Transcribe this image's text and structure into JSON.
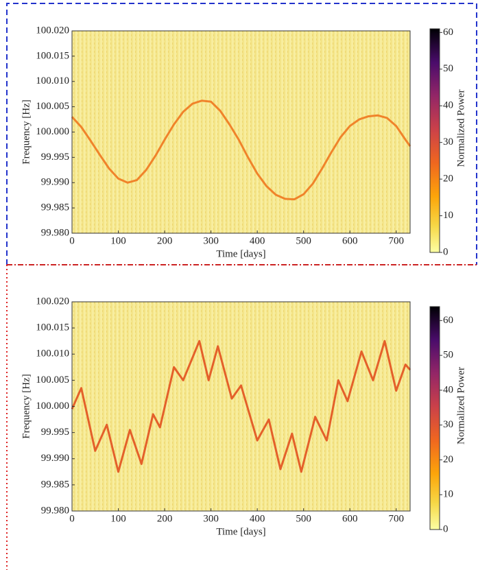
{
  "chart_data": [
    {
      "type": "spectrogram",
      "xlabel": "Time [days]",
      "ylabel": "Frequency [Hz]",
      "xlim": [
        0,
        730
      ],
      "xticks": [
        0,
        100,
        200,
        300,
        400,
        500,
        600,
        700
      ],
      "ylim": [
        99.98,
        100.02
      ],
      "yticks": [
        {
          "value": 99.98,
          "label": "99.980"
        },
        99.985,
        {
          "value": 99.99,
          "label": "99.990"
        },
        99.995,
        {
          "value": 100.0,
          "label": "100.000"
        },
        100.005,
        {
          "value": 100.01,
          "label": "100.010"
        },
        100.015,
        {
          "value": 100.02,
          "label": "100.020"
        }
      ],
      "color": "#f0832a",
      "x": [
        0,
        20,
        40,
        60,
        80,
        100,
        120,
        140,
        160,
        180,
        200,
        220,
        240,
        260,
        280,
        300,
        320,
        340,
        360,
        380,
        400,
        420,
        440,
        460,
        480,
        500,
        520,
        540,
        560,
        580,
        600,
        620,
        640,
        660,
        680,
        700,
        720,
        730
      ],
      "values": [
        100.003,
        100.001,
        99.9983,
        99.9955,
        99.9928,
        99.9908,
        99.99,
        99.9905,
        99.9925,
        99.9953,
        99.9985,
        100.0015,
        100.004,
        100.0056,
        100.0062,
        100.006,
        100.0042,
        100.0015,
        99.9985,
        99.995,
        99.9918,
        99.9893,
        99.9876,
        99.9868,
        99.9867,
        99.9877,
        99.9898,
        99.9928,
        99.996,
        99.999,
        100.0012,
        100.0025,
        100.0031,
        100.0033,
        100.0028,
        100.0012,
        99.9985,
        99.9972
      ],
      "colorbar": {
        "label": "Normalized Power",
        "lim": [
          0,
          61
        ],
        "ticks": [
          0,
          10,
          20,
          30,
          40,
          50,
          60
        ]
      }
    },
    {
      "type": "spectrogram",
      "xlabel": "Time [days]",
      "ylabel": "Frequency [Hz]",
      "xlim": [
        0,
        730
      ],
      "xticks": [
        0,
        100,
        200,
        300,
        400,
        500,
        600,
        700
      ],
      "ylim": [
        99.98,
        100.02
      ],
      "yticks": [
        {
          "value": 99.98,
          "label": "99.980"
        },
        99.985,
        {
          "value": 99.99,
          "label": "99.990"
        },
        99.995,
        {
          "value": 100.0,
          "label": "100.000"
        },
        100.005,
        {
          "value": 100.01,
          "label": "100.010"
        },
        100.015,
        {
          "value": 100.02,
          "label": "100.020"
        }
      ],
      "color": "#e4602a",
      "x": [
        0,
        20,
        50,
        75,
        100,
        125,
        150,
        175,
        190,
        220,
        240,
        275,
        295,
        315,
        345,
        365,
        400,
        425,
        450,
        475,
        495,
        525,
        550,
        575,
        595,
        625,
        650,
        675,
        700,
        720,
        730
      ],
      "values": [
        99.9995,
        100.0035,
        99.9915,
        99.9965,
        99.9875,
        99.9955,
        99.989,
        99.9985,
        99.996,
        100.0075,
        100.005,
        100.0125,
        100.005,
        100.0115,
        100.0015,
        100.004,
        99.9935,
        99.9975,
        99.988,
        99.9948,
        99.9875,
        99.998,
        99.9935,
        100.005,
        100.001,
        100.0105,
        100.005,
        100.0125,
        100.003,
        100.008,
        100.007
      ],
      "colorbar": {
        "label": "Normalized Power",
        "lim": [
          0,
          64
        ],
        "ticks": [
          0,
          10,
          20,
          30,
          40,
          50,
          60
        ]
      }
    }
  ]
}
